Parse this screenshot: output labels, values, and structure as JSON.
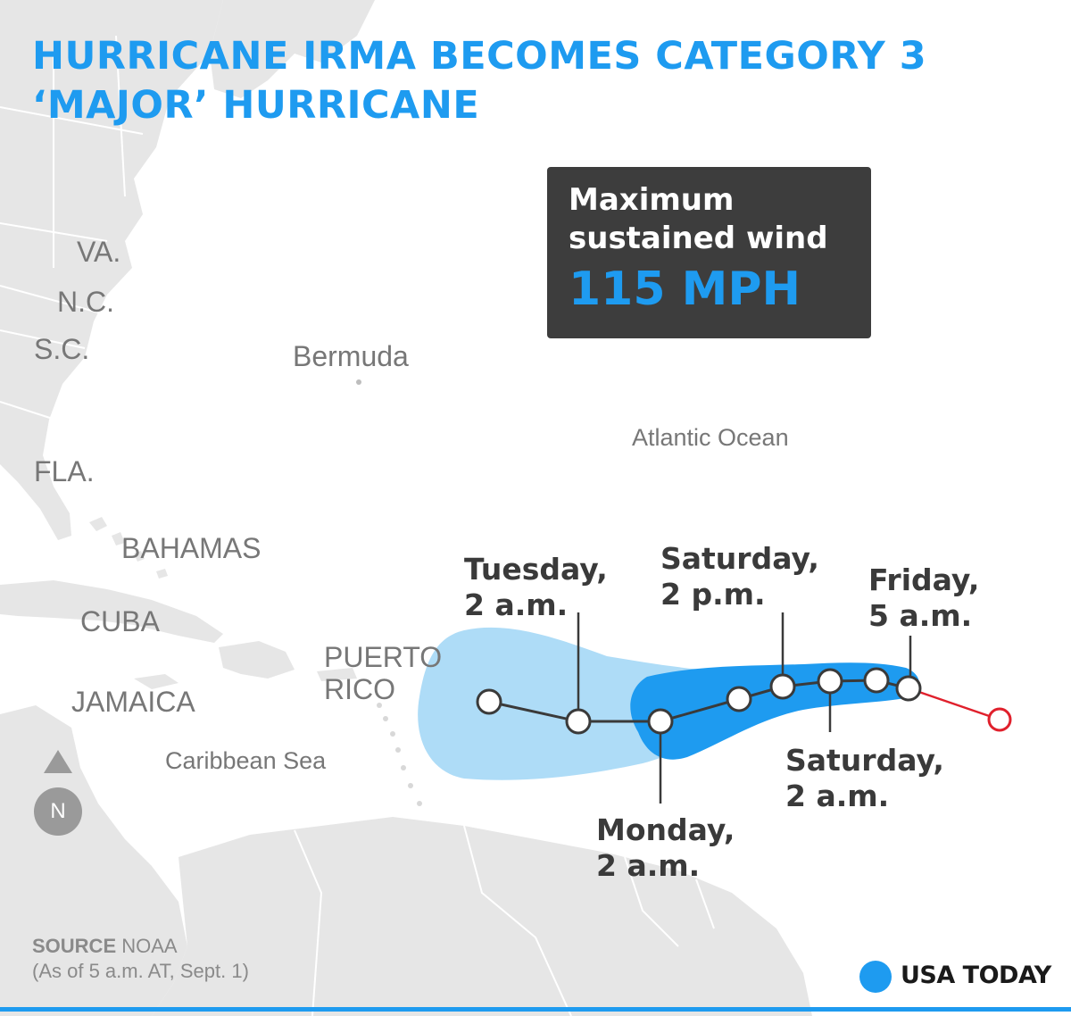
{
  "headline": {
    "line1": "HURRICANE IRMA BECOMES CATEGORY 3",
    "line2": "‘MAJOR’ HURRICANE"
  },
  "wind_box": {
    "label_line1": "Maximum",
    "label_line2": "sustained wind",
    "value": "115 MPH"
  },
  "places": {
    "va": "VA.",
    "nc": "N.C.",
    "sc": "S.C.",
    "fla": "FLA.",
    "bermuda": "Bermuda",
    "atlantic": "Atlantic Ocean",
    "bahamas": "BAHAMAS",
    "cuba": "CUBA",
    "puerto_rico_1": "PUERTO",
    "puerto_rico_2": "RICO",
    "jamaica": "JAMAICA",
    "caribbean": "Caribbean Sea"
  },
  "track": {
    "callouts": {
      "tuesday": [
        "Tuesday,",
        "2 a.m."
      ],
      "saturday_pm": [
        "Saturday,",
        "2 p.m."
      ],
      "friday": [
        "Friday,",
        "5 a.m."
      ],
      "saturday_am": [
        "Saturday,",
        "2 a.m."
      ],
      "monday": [
        "Monday,",
        "2 a.m."
      ]
    },
    "colors": {
      "cone_outer": "#aedcf7",
      "cone_inner": "#1e9bf0",
      "forecast_line": "#3a3a3a",
      "past_track": "#e0202c"
    }
  },
  "compass": {
    "north": "N"
  },
  "source": {
    "label": "SOURCE",
    "value": "NOAA",
    "note": "(As of 5 a.m. AT, Sept. 1)"
  },
  "brand": {
    "name": "USA TODAY",
    "color": "#1e9bf0"
  }
}
